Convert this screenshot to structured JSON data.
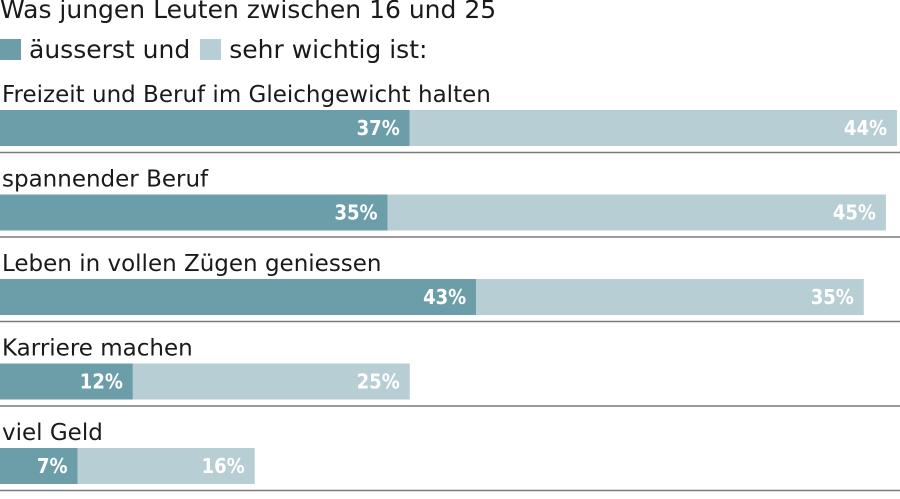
{
  "chart_data": {
    "type": "bar",
    "orientation": "horizontal",
    "stacked": true,
    "title": "Was jungen Leuten zwischen 16 und 25",
    "categories": [
      "Freizeit und Beruf im Gleichgewicht halten",
      "spannender Beruf",
      "Leben in vollen Zügen geniessen",
      "Karriere machen",
      "viel Geld"
    ],
    "series": [
      {
        "name": "äusserst und",
        "color": "#6b9ea9",
        "values": [
          37,
          35,
          43,
          12,
          7
        ]
      },
      {
        "name": "sehr wichtig ist:",
        "color": "#b8ced5",
        "values": [
          44,
          45,
          35,
          25,
          16
        ]
      }
    ],
    "value_suffix": "%",
    "xlim": [
      0,
      81
    ],
    "grid": false,
    "legend_position": "top-left"
  }
}
